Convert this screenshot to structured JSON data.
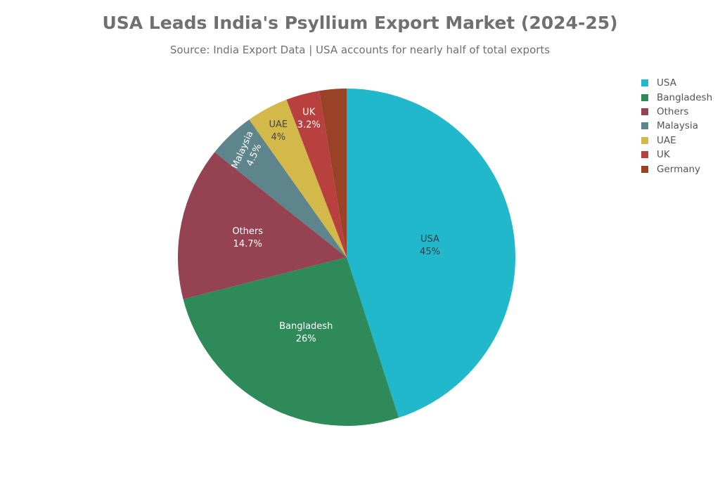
{
  "chart_data": {
    "type": "pie",
    "title": "USA Leads India's Psyllium Export Market (2024-25)",
    "subtitle": "Source: India Export Data | USA accounts for nearly half of total exports",
    "legend_position": "top-right",
    "slices": [
      {
        "label": "USA",
        "value": 45,
        "value_label": "45%",
        "color": "#22b8cc",
        "text_color": "#2f3e46"
      },
      {
        "label": "Bangladesh",
        "value": 26,
        "value_label": "26%",
        "color": "#2e8a58",
        "text_color": "#ffffff"
      },
      {
        "label": "Others",
        "value": 14.7,
        "value_label": "14.7%",
        "color": "#954253",
        "text_color": "#ffffff"
      },
      {
        "label": "Malaysia",
        "value": 4.5,
        "value_label": "4.5%",
        "color": "#5e858c",
        "text_color": "#ffffff"
      },
      {
        "label": "UAE",
        "value": 4,
        "value_label": "4%",
        "color": "#d2b94a",
        "text_color": "#444444"
      },
      {
        "label": "UK",
        "value": 3.2,
        "value_label": "3.2%",
        "color": "#b8403f",
        "text_color": "#ffffff"
      },
      {
        "label": "Germany",
        "value": 2.6,
        "value_label": "",
        "color": "#9a4225",
        "text_color": "#ffffff"
      }
    ]
  }
}
